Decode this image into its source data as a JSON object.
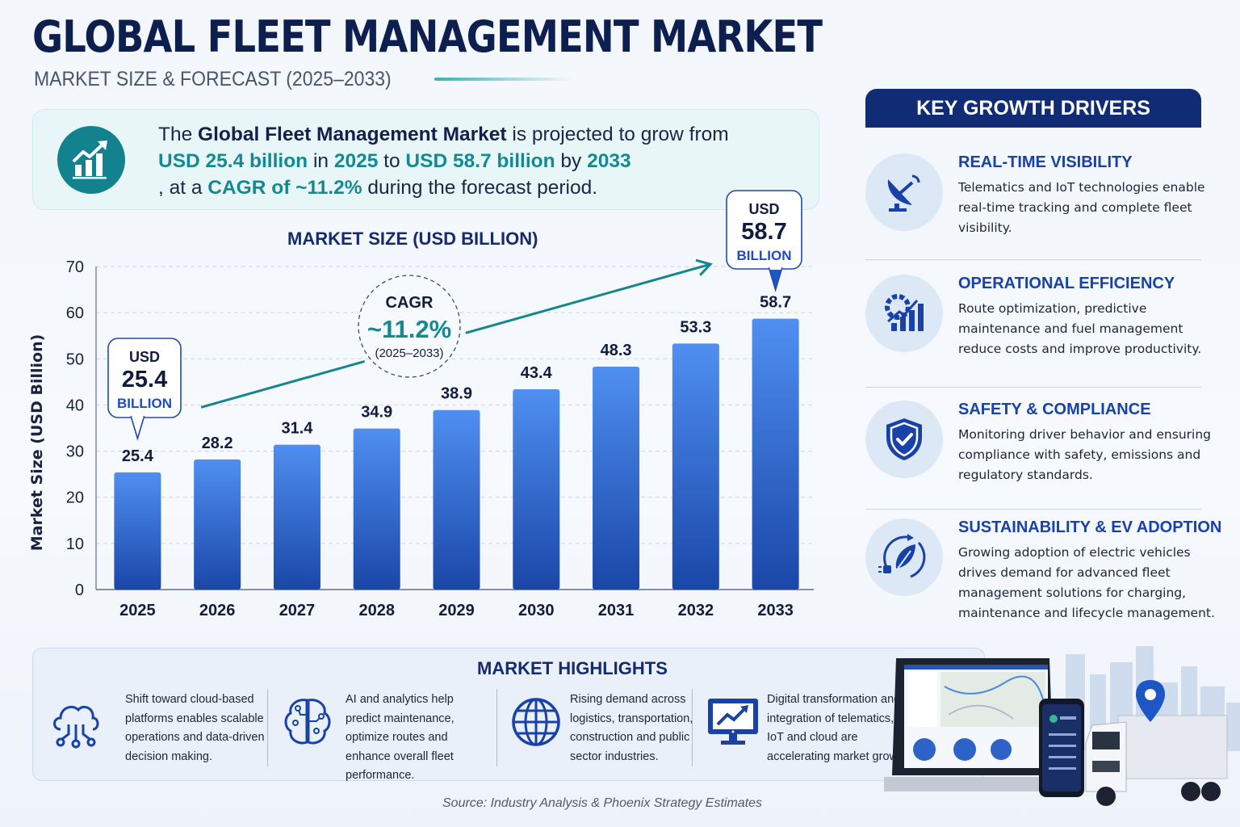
{
  "header": {
    "title": "GLOBAL FLEET MANAGEMENT MARKET",
    "subtitle": "MARKET SIZE & FORECAST (2025–2033)"
  },
  "summary": {
    "icon": "growth-chart-icon",
    "segments": [
      {
        "text": "The ",
        "style": "normal"
      },
      {
        "text": "Global Fleet Management Market",
        "style": "bold"
      },
      {
        "text": " is projected to grow from ",
        "style": "normal"
      },
      {
        "text": "USD 25.4 billion",
        "style": "teal"
      },
      {
        "text": " in ",
        "style": "normal"
      },
      {
        "text": "2025",
        "style": "teal"
      },
      {
        "text": " to ",
        "style": "normal"
      },
      {
        "text": "USD 58.7 billion",
        "style": "teal"
      },
      {
        "text": " by ",
        "style": "normal"
      },
      {
        "text": "2033",
        "style": "teal"
      },
      {
        "text": ", at a ",
        "style": "normal"
      },
      {
        "text": "CAGR of ~11.2%",
        "style": "teal"
      },
      {
        "text": " during the forecast period.",
        "style": "normal"
      }
    ]
  },
  "chart_data": {
    "type": "bar",
    "title": "MARKET SIZE (USD BILLION)",
    "xlabel": "",
    "ylabel": "Market Size (USD Billion)",
    "ylim": [
      0,
      70
    ],
    "yticks": [
      0,
      10,
      20,
      30,
      40,
      50,
      60,
      70
    ],
    "grid": true,
    "categories": [
      "2025",
      "2026",
      "2027",
      "2028",
      "2029",
      "2030",
      "2031",
      "2032",
      "2033"
    ],
    "values": [
      25.4,
      28.2,
      31.4,
      34.9,
      38.9,
      43.4,
      48.3,
      53.3,
      58.7
    ],
    "value_labels": [
      "25.4",
      "28.2",
      "31.4",
      "34.9",
      "38.9",
      "43.4",
      "48.3",
      "53.3",
      "58.7"
    ],
    "bar_color_top": "#4f8ff0",
    "bar_color_bottom": "#1a47a8",
    "annotations": {
      "start_callout": {
        "category": "2025",
        "top": "USD",
        "value": "25.4",
        "bottom": "BILLION"
      },
      "end_callout": {
        "category": "2033",
        "top": "USD",
        "value": "58.7",
        "bottom": "BILLION"
      },
      "cagr_badge": {
        "label": "CAGR",
        "value": "~11.2%",
        "period": "(2025–2033)"
      },
      "trend_arrow": {
        "from_category": "2026",
        "to_category": "2033",
        "color": "#14868f"
      }
    }
  },
  "drivers": {
    "heading": "KEY GROWTH DRIVERS",
    "items": [
      {
        "icon": "satellite-dish-icon",
        "title": "REAL-TIME VISIBILITY",
        "desc": "Telematics and IoT technologies enable real-time tracking and complete fleet visibility."
      },
      {
        "icon": "gear-chart-icon",
        "title": "OPERATIONAL EFFICIENCY",
        "desc": "Route optimization, predictive maintenance and fuel management reduce costs and improve productivity."
      },
      {
        "icon": "shield-check-icon",
        "title": "SAFETY & COMPLIANCE",
        "desc": "Monitoring driver behavior and ensuring compliance with safety, emissions and regulatory standards."
      },
      {
        "icon": "ev-leaf-plug-icon",
        "title": "SUSTAINABILITY & EV ADOPTION",
        "desc": "Growing adoption of electric vehicles drives demand for advanced fleet management solutions for charging, maintenance and lifecycle management."
      }
    ]
  },
  "highlights": {
    "heading": "MARKET HIGHLIGHTS",
    "items": [
      {
        "icon": "cloud-network-icon",
        "text": "Shift toward cloud-based platforms enables scalable operations and data-driven decision making."
      },
      {
        "icon": "ai-brain-icon",
        "text": "AI and analytics help predict maintenance, optimize routes and enhance overall fleet performance."
      },
      {
        "icon": "globe-icon",
        "text": "Rising demand across logistics, transportation, construction and public sector industries."
      },
      {
        "icon": "monitor-trend-icon",
        "text": "Digital transformation and integration of telematics, IoT and cloud are accelerating market growth."
      }
    ]
  },
  "illustration": {
    "icon": "fleet-devices-truck-illustration"
  },
  "footer": {
    "source": "Source: Industry Analysis & Phoenix Strategy Estimates"
  },
  "colors": {
    "navy": "#0f2c74",
    "teal": "#138a92",
    "driver_blue": "#1842a8"
  }
}
